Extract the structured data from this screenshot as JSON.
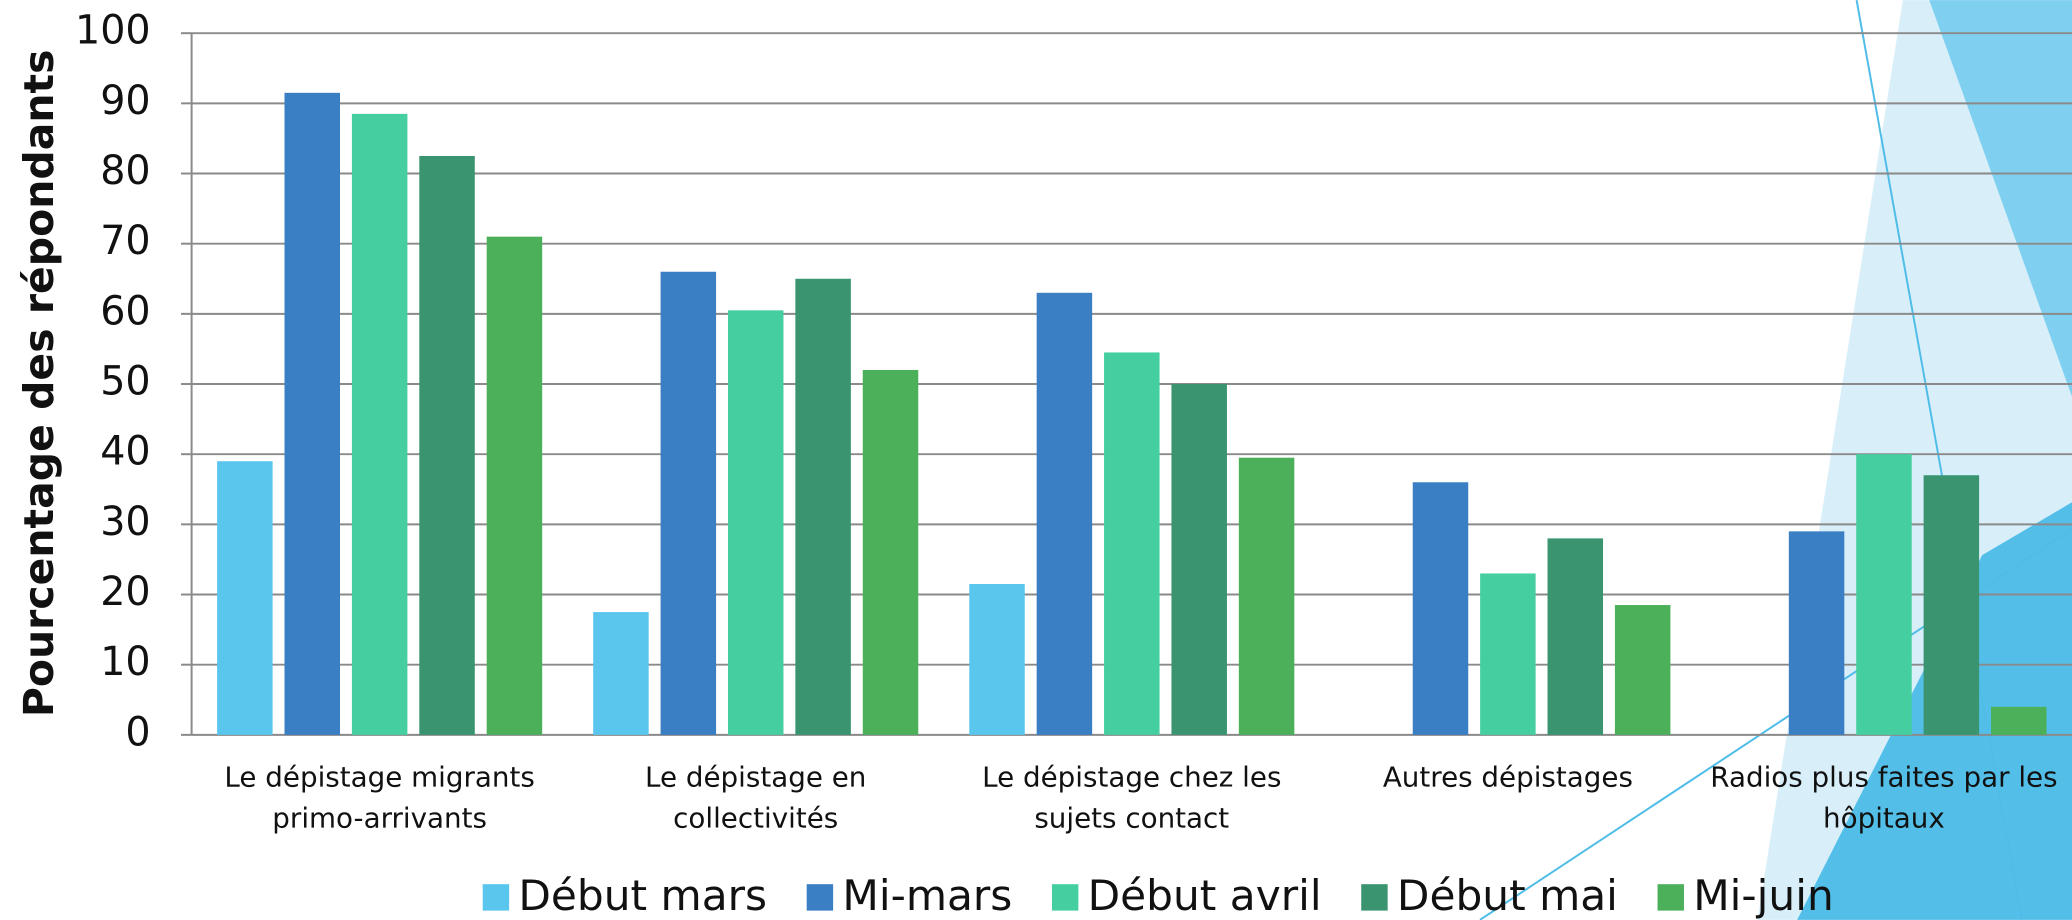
{
  "chart_data": {
    "type": "bar",
    "y_label": "Pourcentage des répondants",
    "categories": [
      "Le dépistage migrants primo-arrivants",
      "Le dépistage en collectivités",
      "Le dépistage chez les sujets contact",
      "Autres dépistages",
      "Radios plus faites par les hôpitaux"
    ],
    "series": [
      {
        "name": "Début mars",
        "color": "#5ac6ee",
        "values": [
          39,
          17.5,
          21.5,
          0,
          0
        ]
      },
      {
        "name": "Mi-mars",
        "color": "#3a7fc4",
        "values": [
          91.5,
          66,
          63,
          36,
          29
        ]
      },
      {
        "name": "Début avril",
        "color": "#45cfa0",
        "values": [
          88.5,
          60.5,
          54.5,
          23,
          40
        ]
      },
      {
        "name": "Début mai",
        "color": "#3a9470",
        "values": [
          82.5,
          65,
          50,
          28,
          37
        ]
      },
      {
        "name": "Mi-juin",
        "color": "#4caf5a",
        "values": [
          71,
          52,
          39.5,
          18.5,
          4
        ]
      }
    ],
    "ylim": [
      0,
      100
    ],
    "yticks": [
      0,
      10,
      20,
      30,
      40,
      50,
      60,
      70,
      80,
      90,
      100
    ],
    "grid": true,
    "legend": "bottom"
  }
}
